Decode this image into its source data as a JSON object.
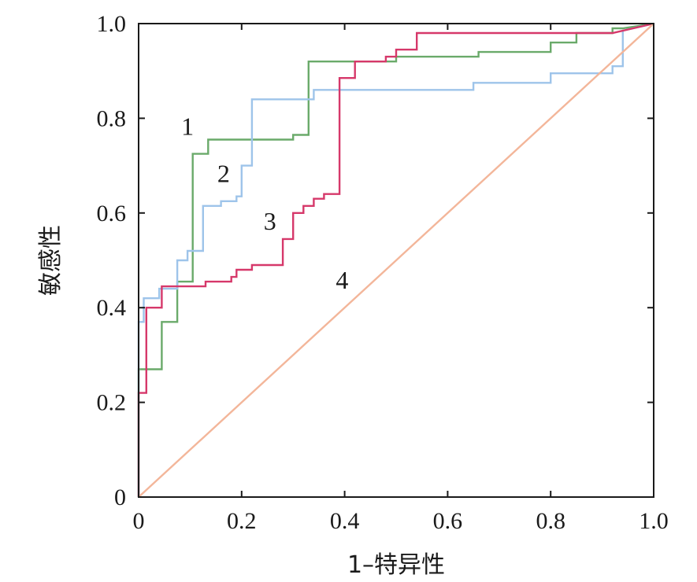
{
  "chart_data": {
    "type": "line",
    "xlabel": "1–特异性",
    "ylabel": "敏感性",
    "xlim": [
      0,
      1.0
    ],
    "ylim": [
      0,
      1.0
    ],
    "x_ticks": [
      "0",
      "0.2",
      "0.4",
      "0.6",
      "0.8",
      "1.0"
    ],
    "y_ticks": [
      "0",
      "0.2",
      "0.4",
      "0.6",
      "0.8",
      "1.0"
    ],
    "grid": false,
    "legend": "none",
    "series": [
      {
        "name": "1",
        "color": "#6aaa6a",
        "step": true,
        "points": [
          [
            0,
            0
          ],
          [
            0,
            0.27
          ],
          [
            0.045,
            0.27
          ],
          [
            0.045,
            0.37
          ],
          [
            0.075,
            0.37
          ],
          [
            0.075,
            0.455
          ],
          [
            0.105,
            0.455
          ],
          [
            0.105,
            0.725
          ],
          [
            0.135,
            0.725
          ],
          [
            0.135,
            0.755
          ],
          [
            0.3,
            0.755
          ],
          [
            0.3,
            0.765
          ],
          [
            0.33,
            0.765
          ],
          [
            0.33,
            0.92
          ],
          [
            0.5,
            0.92
          ],
          [
            0.5,
            0.93
          ],
          [
            0.66,
            0.93
          ],
          [
            0.66,
            0.94
          ],
          [
            0.8,
            0.94
          ],
          [
            0.8,
            0.96
          ],
          [
            0.85,
            0.96
          ],
          [
            0.85,
            0.98
          ],
          [
            0.92,
            0.98
          ],
          [
            0.92,
            0.99
          ],
          [
            0.94,
            0.99
          ],
          [
            1.0,
            1.0
          ]
        ]
      },
      {
        "name": "2",
        "color": "#9ec4ea",
        "step": true,
        "points": [
          [
            0,
            0
          ],
          [
            0,
            0.37
          ],
          [
            0.01,
            0.37
          ],
          [
            0.01,
            0.42
          ],
          [
            0.04,
            0.42
          ],
          [
            0.04,
            0.44
          ],
          [
            0.075,
            0.44
          ],
          [
            0.075,
            0.5
          ],
          [
            0.095,
            0.5
          ],
          [
            0.095,
            0.52
          ],
          [
            0.125,
            0.52
          ],
          [
            0.125,
            0.615
          ],
          [
            0.16,
            0.615
          ],
          [
            0.16,
            0.625
          ],
          [
            0.19,
            0.625
          ],
          [
            0.19,
            0.635
          ],
          [
            0.2,
            0.635
          ],
          [
            0.2,
            0.7
          ],
          [
            0.22,
            0.7
          ],
          [
            0.22,
            0.84
          ],
          [
            0.34,
            0.84
          ],
          [
            0.34,
            0.86
          ],
          [
            0.65,
            0.86
          ],
          [
            0.65,
            0.875
          ],
          [
            0.8,
            0.875
          ],
          [
            0.8,
            0.895
          ],
          [
            0.92,
            0.895
          ],
          [
            0.92,
            0.91
          ],
          [
            0.94,
            0.91
          ],
          [
            0.94,
            0.985
          ],
          [
            1.0,
            1.0
          ]
        ]
      },
      {
        "name": "3",
        "color": "#d6386a",
        "step": true,
        "points": [
          [
            0,
            0
          ],
          [
            0,
            0.22
          ],
          [
            0.015,
            0.22
          ],
          [
            0.015,
            0.4
          ],
          [
            0.045,
            0.4
          ],
          [
            0.045,
            0.445
          ],
          [
            0.13,
            0.445
          ],
          [
            0.13,
            0.455
          ],
          [
            0.18,
            0.455
          ],
          [
            0.18,
            0.465
          ],
          [
            0.19,
            0.465
          ],
          [
            0.19,
            0.48
          ],
          [
            0.22,
            0.48
          ],
          [
            0.22,
            0.49
          ],
          [
            0.28,
            0.49
          ],
          [
            0.28,
            0.545
          ],
          [
            0.3,
            0.545
          ],
          [
            0.3,
            0.6
          ],
          [
            0.32,
            0.6
          ],
          [
            0.32,
            0.615
          ],
          [
            0.34,
            0.615
          ],
          [
            0.34,
            0.63
          ],
          [
            0.36,
            0.63
          ],
          [
            0.36,
            0.64
          ],
          [
            0.39,
            0.64
          ],
          [
            0.39,
            0.885
          ],
          [
            0.42,
            0.885
          ],
          [
            0.42,
            0.92
          ],
          [
            0.48,
            0.92
          ],
          [
            0.48,
            0.93
          ],
          [
            0.5,
            0.93
          ],
          [
            0.5,
            0.945
          ],
          [
            0.54,
            0.945
          ],
          [
            0.54,
            0.98
          ],
          [
            0.92,
            0.98
          ],
          [
            1.0,
            1.0
          ]
        ]
      },
      {
        "name": "4",
        "color": "#f3b69a",
        "step": false,
        "points": [
          [
            0,
            0
          ],
          [
            1.0,
            1.0
          ]
        ]
      }
    ],
    "curve_labels": [
      {
        "text": "1",
        "x": 0.095,
        "y": 0.765
      },
      {
        "text": "2",
        "x": 0.165,
        "y": 0.665
      },
      {
        "text": "3",
        "x": 0.255,
        "y": 0.565
      },
      {
        "text": "4",
        "x": 0.395,
        "y": 0.44
      }
    ]
  }
}
